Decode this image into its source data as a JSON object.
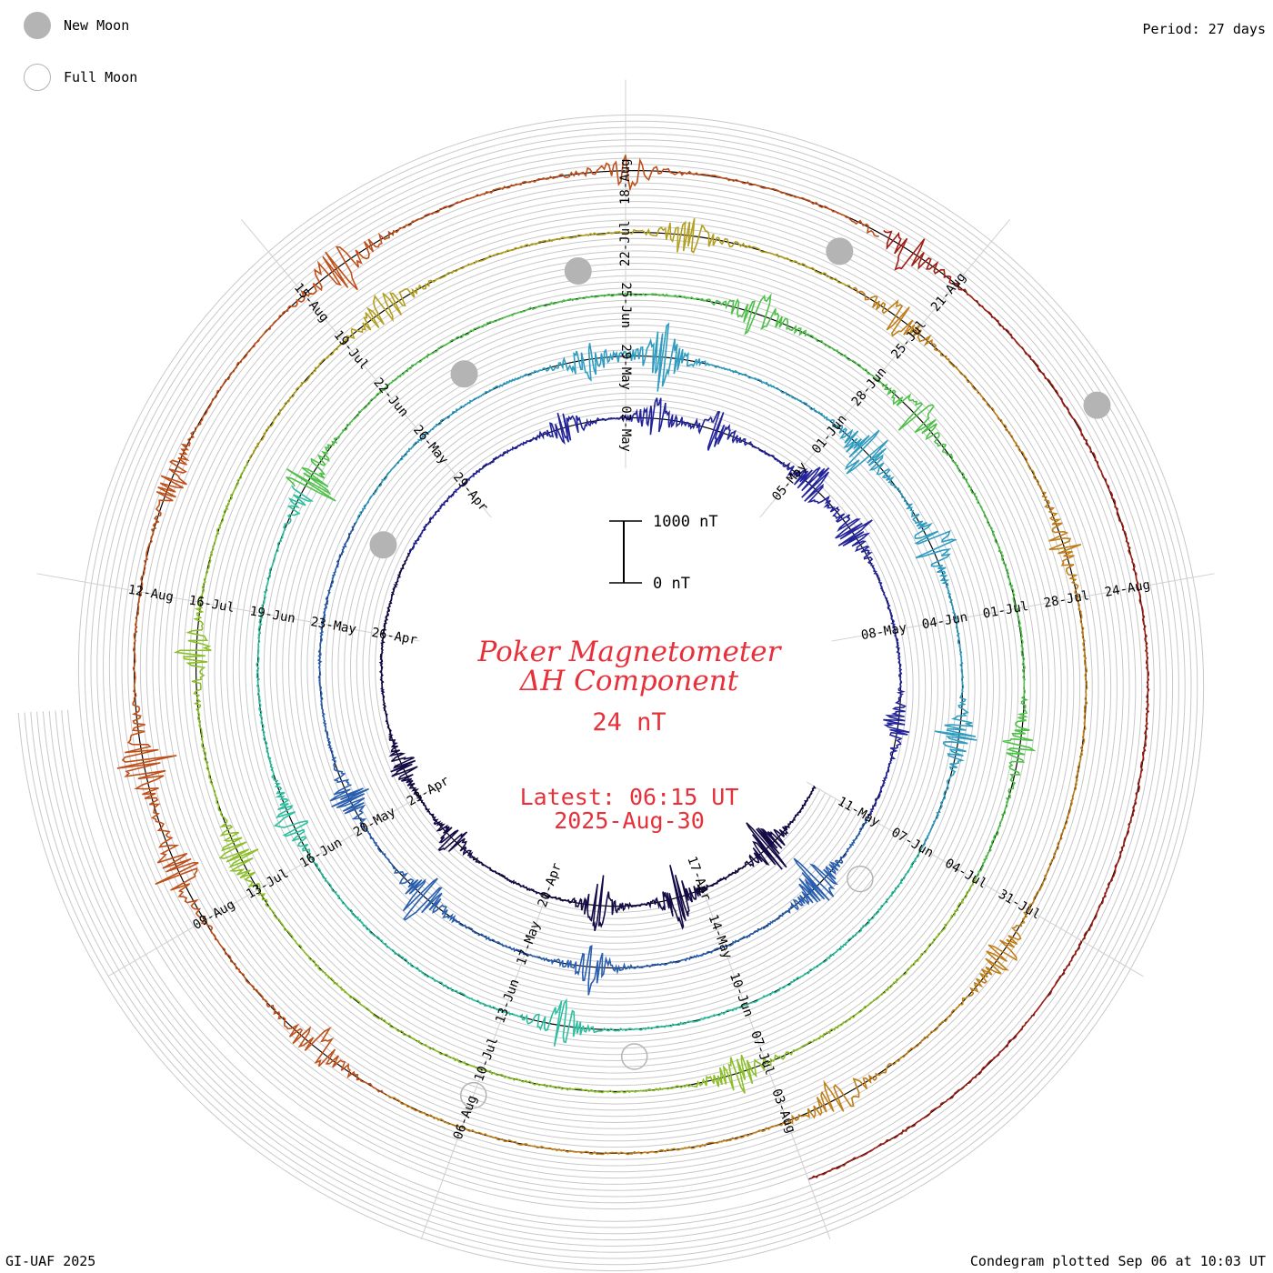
{
  "legend": {
    "new_moon_label": "New Moon",
    "full_moon_label": "Full Moon",
    "new_moon_color": "#b4b4b4",
    "full_moon_color": "#b4b4b4"
  },
  "header": {
    "period": "Period: 27 days"
  },
  "footer": {
    "credit": "GI-UAF 2025",
    "plotted": "Condegram plotted Sep 06 at 10:03 UT"
  },
  "chart_data": {
    "type": "line",
    "subtype": "condegram-spiral",
    "title_line1": "Poker Magnetometer",
    "title_line2": "ΔH Component",
    "value": "24 nT",
    "latest_line1": "Latest: 06:15 UT",
    "latest_line2": "2025-Aug-30",
    "scale_top_label": "1000 nT",
    "scale_bottom_label": "0 nT",
    "scale_range_nT": [
      0,
      1000
    ],
    "period_days": 27,
    "start_date": "2025-Apr-14",
    "end_date": "2025-Aug-30",
    "title_color": "#e8303a",
    "series_colors": [
      "#140a46",
      "#23239a",
      "#2a5fb0",
      "#2f9cc0",
      "#2ebfa0",
      "#4fc04a",
      "#8cbf2a",
      "#b3a020",
      "#c07f1a",
      "#c0501a",
      "#a01e14"
    ],
    "date_labels": [
      {
        "label": "17-Apr",
        "day": 3
      },
      {
        "label": "20-Apr",
        "day": 6
      },
      {
        "label": "23-Apr",
        "day": 9
      },
      {
        "label": "26-Apr",
        "day": 12
      },
      {
        "label": "29-Apr",
        "day": 15
      },
      {
        "label": "02-May",
        "day": 18
      },
      {
        "label": "05-May",
        "day": 21
      },
      {
        "label": "08-May",
        "day": 24
      },
      {
        "label": "11-May",
        "day": 27
      },
      {
        "label": "14-May",
        "day": 30
      },
      {
        "label": "17-May",
        "day": 33
      },
      {
        "label": "20-May",
        "day": 36
      },
      {
        "label": "23-May",
        "day": 39
      },
      {
        "label": "26-May",
        "day": 42
      },
      {
        "label": "29-May",
        "day": 45
      },
      {
        "label": "01-Jun",
        "day": 48
      },
      {
        "label": "04-Jun",
        "day": 51
      },
      {
        "label": "07-Jun",
        "day": 54
      },
      {
        "label": "10-Jun",
        "day": 57
      },
      {
        "label": "13-Jun",
        "day": 60
      },
      {
        "label": "16-Jun",
        "day": 63
      },
      {
        "label": "19-Jun",
        "day": 66
      },
      {
        "label": "22-Jun",
        "day": 69
      },
      {
        "label": "25-Jun",
        "day": 72
      },
      {
        "label": "28-Jun",
        "day": 75
      },
      {
        "label": "01-Jul",
        "day": 78
      },
      {
        "label": "04-Jul",
        "day": 81
      },
      {
        "label": "07-Jul",
        "day": 84
      },
      {
        "label": "10-Jul",
        "day": 87
      },
      {
        "label": "13-Jul",
        "day": 90
      },
      {
        "label": "16-Jul",
        "day": 93
      },
      {
        "label": "19-Jul",
        "day": 96
      },
      {
        "label": "22-Jul",
        "day": 99
      },
      {
        "label": "25-Jul",
        "day": 102
      },
      {
        "label": "28-Jul",
        "day": 105
      },
      {
        "label": "31-Jul",
        "day": 108
      },
      {
        "label": "03-Aug",
        "day": 111
      },
      {
        "label": "06-Aug",
        "day": 114
      },
      {
        "label": "09-Aug",
        "day": 117
      },
      {
        "label": "12-Aug",
        "day": 120
      },
      {
        "label": "15-Aug",
        "day": 123
      },
      {
        "label": "18-Aug",
        "day": 126
      },
      {
        "label": "21-Aug",
        "day": 129
      },
      {
        "label": "24-Aug",
        "day": 132
      }
    ],
    "new_moons_day": [
      13.4,
      42.9,
      71.5,
      101.0,
      130.5
    ],
    "full_moons_day": [
      58.4,
      87.0,
      27.8
    ],
    "disturbances": [
      {
        "day": 1.5,
        "amp_nT": 500
      },
      {
        "day": 3.5,
        "amp_nT": 550
      },
      {
        "day": 5.0,
        "amp_nT": 450
      },
      {
        "day": 8.0,
        "amp_nT": 300
      },
      {
        "day": 9.6,
        "amp_nT": 300
      },
      {
        "day": 17.0,
        "amp_nT": 350
      },
      {
        "day": 18.5,
        "amp_nT": 400
      },
      {
        "day": 19.5,
        "amp_nT": 350
      },
      {
        "day": 21.3,
        "amp_nT": 450
      },
      {
        "day": 22.3,
        "amp_nT": 400
      },
      {
        "day": 25.5,
        "amp_nT": 300
      },
      {
        "day": 28.3,
        "amp_nT": 550
      },
      {
        "day": 32.0,
        "amp_nT": 400
      },
      {
        "day": 34.7,
        "amp_nT": 500
      },
      {
        "day": 36.5,
        "amp_nT": 350
      },
      {
        "day": 44.5,
        "amp_nT": 400
      },
      {
        "day": 45.5,
        "amp_nT": 550
      },
      {
        "day": 48.5,
        "amp_nT": 500
      },
      {
        "day": 50.0,
        "amp_nT": 450
      },
      {
        "day": 52.5,
        "amp_nT": 400
      },
      {
        "day": 59.3,
        "amp_nT": 400
      },
      {
        "day": 63.5,
        "amp_nT": 300
      },
      {
        "day": 67.6,
        "amp_nT": 450
      },
      {
        "day": 73.5,
        "amp_nT": 400
      },
      {
        "day": 75.6,
        "amp_nT": 400
      },
      {
        "day": 79.5,
        "amp_nT": 300
      },
      {
        "day": 84.3,
        "amp_nT": 350
      },
      {
        "day": 90.4,
        "amp_nT": 350
      },
      {
        "day": 92.5,
        "amp_nT": 300
      },
      {
        "day": 96.5,
        "amp_nT": 350
      },
      {
        "day": 99.6,
        "amp_nT": 350
      },
      {
        "day": 101.8,
        "amp_nT": 300
      },
      {
        "day": 104.5,
        "amp_nT": 250
      },
      {
        "day": 108.5,
        "amp_nT": 300
      },
      {
        "day": 110.5,
        "amp_nT": 350
      },
      {
        "day": 115.5,
        "amp_nT": 350
      },
      {
        "day": 117.5,
        "amp_nT": 450
      },
      {
        "day": 118.5,
        "amp_nT": 500
      },
      {
        "day": 121.0,
        "amp_nT": 250
      },
      {
        "day": 123.4,
        "amp_nT": 450
      },
      {
        "day": 126.0,
        "amp_nT": 300
      },
      {
        "day": 128.5,
        "amp_nT": 350
      }
    ]
  }
}
